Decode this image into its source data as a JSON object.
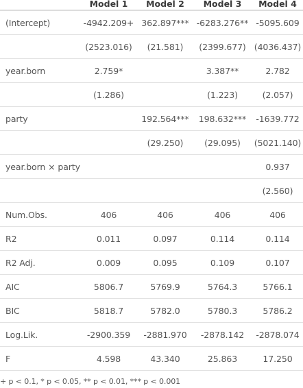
{
  "table": {
    "headers": [
      "",
      "Model 1",
      "Model 2",
      "Model 3",
      "Model 4"
    ],
    "rows": [
      {
        "label": "(Intercept)",
        "cells": [
          "-4942.209+",
          "362.897***",
          "-6283.276**",
          "-5095.609"
        ]
      },
      {
        "label": "",
        "cells": [
          "(2523.016)",
          "(21.581)",
          "(2399.677)",
          "(4036.437)"
        ]
      },
      {
        "label": "year.born",
        "cells": [
          "2.759*",
          "",
          "3.387**",
          "2.782"
        ]
      },
      {
        "label": "",
        "cells": [
          "(1.286)",
          "",
          "(1.223)",
          "(2.057)"
        ]
      },
      {
        "label": "party",
        "cells": [
          "",
          "192.564***",
          "198.632***",
          "-1639.772"
        ]
      },
      {
        "label": "",
        "cells": [
          "",
          "(29.250)",
          "(29.095)",
          "(5021.140)"
        ]
      },
      {
        "label": "year.born × party",
        "cells": [
          "",
          "",
          "",
          "0.937"
        ]
      },
      {
        "label": "",
        "cells": [
          "",
          "",
          "",
          "(2.560)"
        ]
      },
      {
        "label": "Num.Obs.",
        "cells": [
          "406",
          "406",
          "406",
          "406"
        ]
      },
      {
        "label": "R2",
        "cells": [
          "0.011",
          "0.097",
          "0.114",
          "0.114"
        ]
      },
      {
        "label": "R2 Adj.",
        "cells": [
          "0.009",
          "0.095",
          "0.109",
          "0.107"
        ]
      },
      {
        "label": "AIC",
        "cells": [
          "5806.7",
          "5769.9",
          "5764.3",
          "5766.1"
        ]
      },
      {
        "label": "BIC",
        "cells": [
          "5818.7",
          "5782.0",
          "5780.3",
          "5786.2"
        ]
      },
      {
        "label": "Log.Lik.",
        "cells": [
          "-2900.359",
          "-2881.970",
          "-2878.142",
          "-2878.074"
        ]
      },
      {
        "label": "F",
        "cells": [
          "4.598",
          "43.340",
          "25.863",
          "17.250"
        ]
      }
    ]
  },
  "footnote": "+ p < 0.1, * p < 0.05, ** p < 0.01, *** p < 0.001"
}
